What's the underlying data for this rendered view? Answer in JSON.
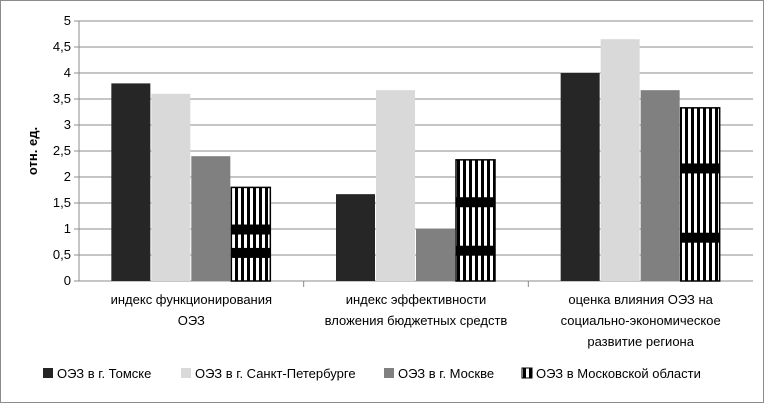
{
  "chart_data": {
    "type": "bar",
    "title": "",
    "xlabel": "",
    "ylabel": "отн. ед.",
    "ylim": [
      0,
      5
    ],
    "yticks": [
      "0",
      "0,5",
      "1",
      "1,5",
      "2",
      "2,5",
      "3",
      "3,5",
      "4",
      "4,5",
      "5"
    ],
    "grid": true,
    "legend_position": "bottom",
    "categories": [
      [
        "индекс функционирования",
        "ОЭЗ"
      ],
      [
        "индекс эффективности",
        "вложения бюджетных средств"
      ],
      [
        "оценка влияния ОЭЗ на",
        "социально-экономическое",
        "развитие региона"
      ]
    ],
    "series": [
      {
        "name": "ОЭЗ в г. Томске",
        "values": [
          3.8,
          1.67,
          4.0
        ],
        "color": "#262626",
        "pattern": "solid"
      },
      {
        "name": "ОЭЗ в г. Санкт-Петербурге",
        "values": [
          3.6,
          3.67,
          4.65
        ],
        "color": "#d9d9d9",
        "pattern": "solid"
      },
      {
        "name": "ОЭЗ в г. Москве",
        "values": [
          2.4,
          1.0,
          3.67
        ],
        "color": "#808080",
        "pattern": "solid"
      },
      {
        "name": "ОЭЗ в Московской области",
        "values": [
          1.8,
          2.33,
          3.33
        ],
        "color": "#000000",
        "pattern": "stripes"
      }
    ]
  }
}
